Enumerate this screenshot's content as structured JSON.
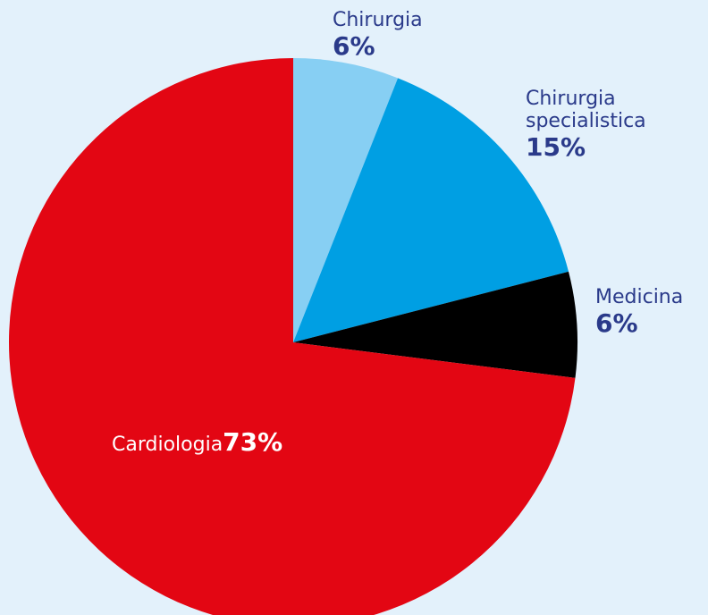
{
  "chart_data": {
    "type": "pie",
    "categories": [
      "Chirurgia",
      "Chirurgia specialistica",
      "Medicina",
      "Cardiologia"
    ],
    "values": [
      6,
      15,
      6,
      73
    ],
    "value_labels": [
      "6%",
      "15%",
      "6%",
      "73%"
    ],
    "colors": [
      "#87cff3",
      "#009fe3",
      "#000000",
      "#e30613"
    ]
  }
}
